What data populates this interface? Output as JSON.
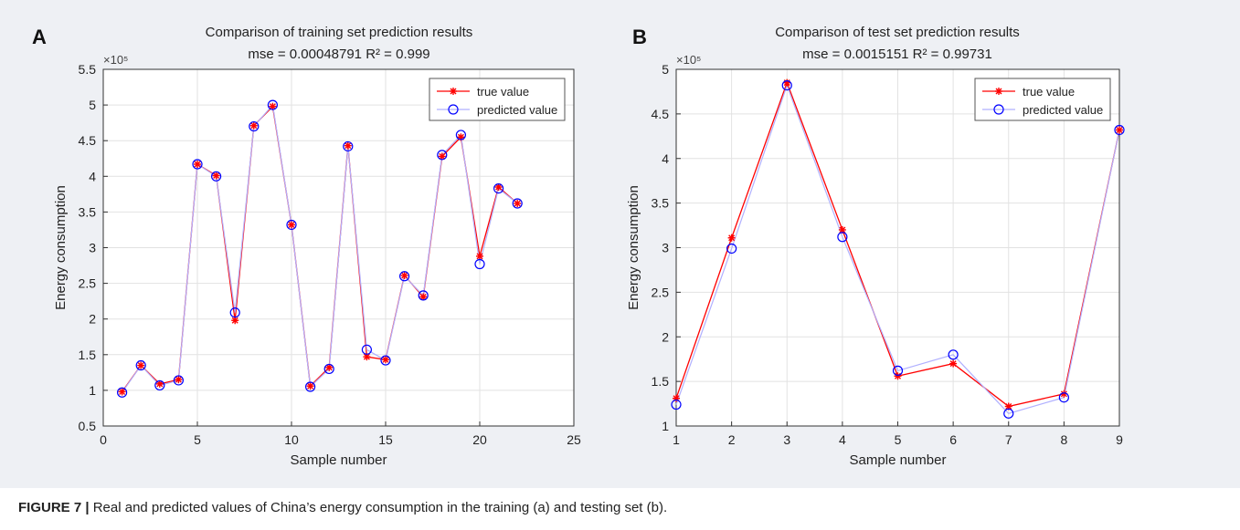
{
  "chart_data": [
    {
      "type": "line",
      "panel_label": "A",
      "title": "Comparison of training set prediction results",
      "subtitle": "mse = 0.00048791 R² = 0.999",
      "xlabel": "Sample number",
      "ylabel": "Energy consumption",
      "y_multiplier": "×10⁵",
      "xlim": [
        0,
        25
      ],
      "ylim": [
        0.5,
        5.5
      ],
      "x_ticks": [
        "0",
        "5",
        "10",
        "15",
        "20",
        "25"
      ],
      "y_ticks": [
        "0.5",
        "1",
        "1.5",
        "2",
        "2.5",
        "3",
        "3.5",
        "4",
        "4.5",
        "5",
        "5.5"
      ],
      "grid": true,
      "legend_position": "top-right",
      "x": [
        1,
        2,
        3,
        4,
        5,
        6,
        7,
        8,
        9,
        10,
        11,
        12,
        13,
        14,
        15,
        16,
        17,
        18,
        19,
        20,
        21,
        22
      ],
      "series": [
        {
          "name": "true value",
          "color": "#ff0000",
          "marker": "star",
          "values": [
            0.98,
            1.35,
            1.09,
            1.15,
            4.17,
            4.01,
            1.98,
            4.71,
            4.98,
            3.32,
            1.06,
            1.32,
            4.43,
            1.47,
            1.43,
            2.61,
            2.31,
            4.28,
            4.55,
            2.88,
            3.85,
            3.62
          ]
        },
        {
          "name": "predicted value",
          "color": "#0000ff",
          "marker": "circle",
          "values": [
            0.97,
            1.35,
            1.07,
            1.14,
            4.17,
            4.0,
            2.09,
            4.7,
            5.0,
            3.32,
            1.05,
            1.3,
            4.42,
            1.57,
            1.42,
            2.6,
            2.33,
            4.3,
            4.58,
            2.77,
            3.83,
            3.62
          ]
        }
      ]
    },
    {
      "type": "line",
      "panel_label": "B",
      "title": "Comparison of test set prediction results",
      "subtitle": "mse = 0.0015151 R² = 0.99731",
      "xlabel": "Sample number",
      "ylabel": "Energy consumption",
      "y_multiplier": "×10⁵",
      "xlim": [
        1,
        9
      ],
      "ylim": [
        1,
        5
      ],
      "x_ticks": [
        "1",
        "2",
        "3",
        "4",
        "5",
        "6",
        "7",
        "8",
        "9"
      ],
      "y_ticks": [
        "1",
        "1.5",
        "2",
        "2.5",
        "3",
        "3.5",
        "4",
        "4.5",
        "5"
      ],
      "grid": true,
      "legend_position": "top-right",
      "x": [
        1,
        2,
        3,
        4,
        5,
        6,
        7,
        8,
        9
      ],
      "series": [
        {
          "name": "true value",
          "color": "#ff0000",
          "marker": "star",
          "values": [
            1.31,
            3.11,
            4.85,
            3.2,
            1.56,
            1.7,
            1.22,
            1.36,
            4.32
          ]
        },
        {
          "name": "predicted value",
          "color": "#0000ff",
          "marker": "circle",
          "values": [
            1.24,
            2.99,
            4.82,
            3.12,
            1.62,
            1.8,
            1.14,
            1.32,
            4.32
          ]
        }
      ]
    }
  ],
  "caption": {
    "label": "FIGURE 7 |",
    "text": " Real and predicted values of China’s energy consumption in the training (a) and testing set (b)."
  }
}
